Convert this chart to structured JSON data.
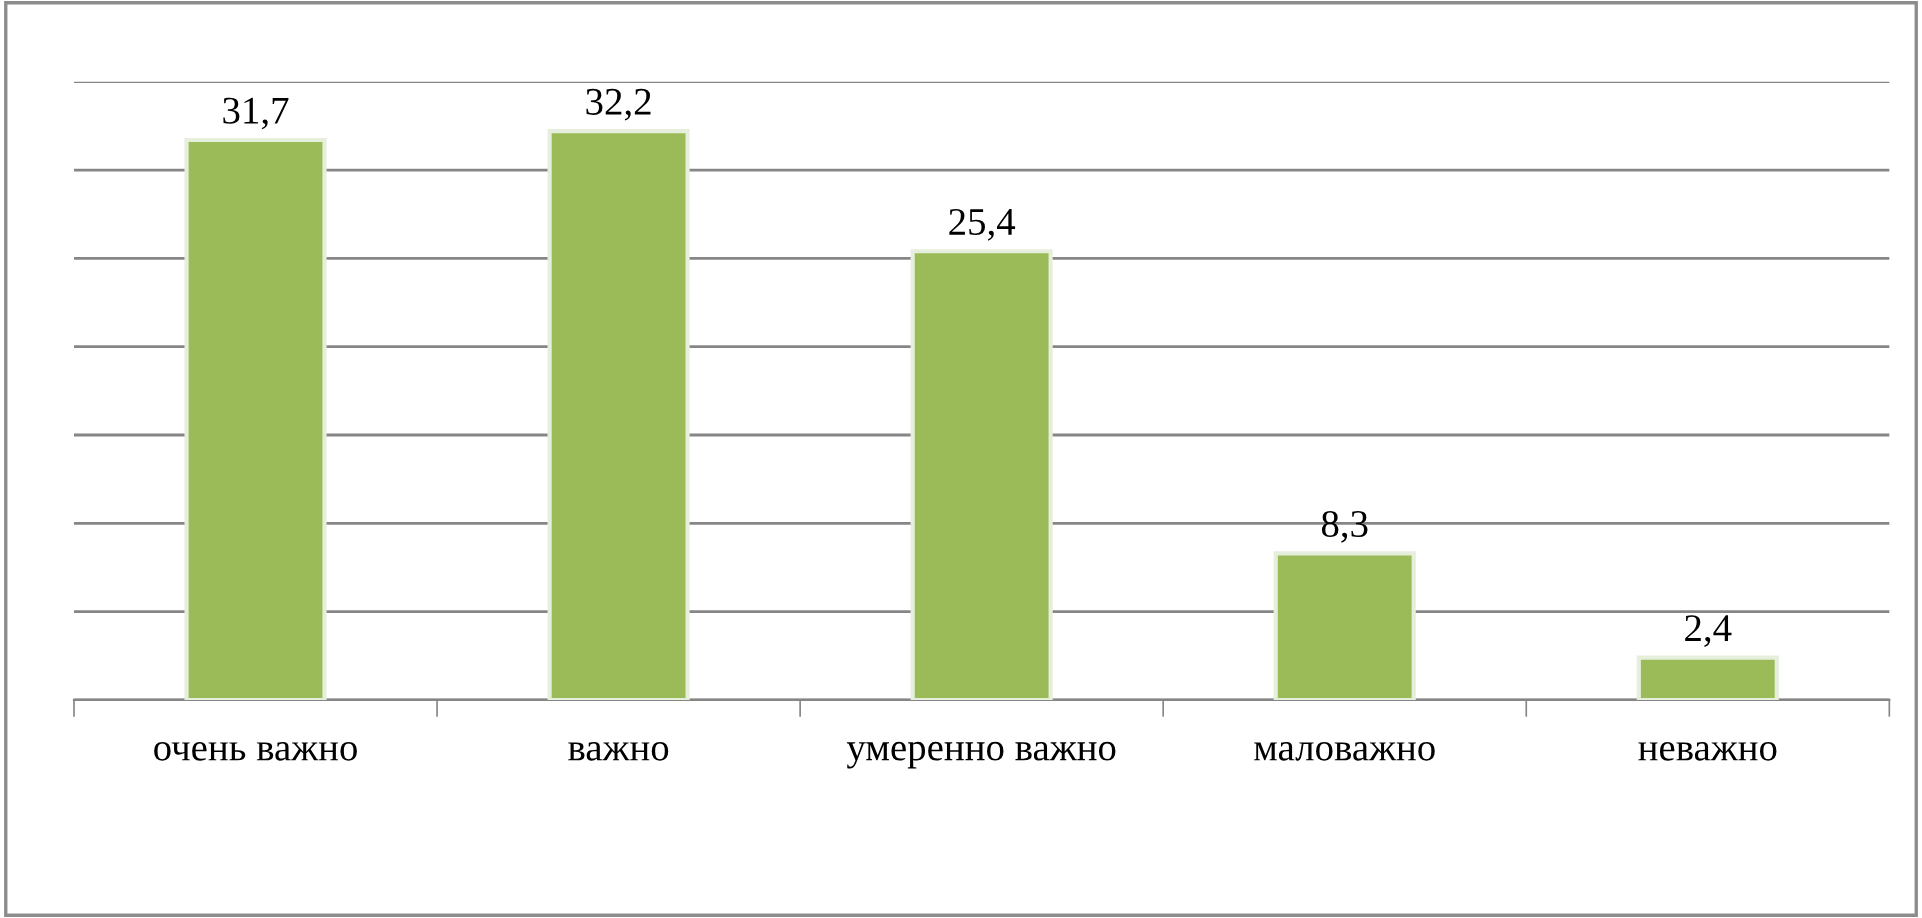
{
  "chart_data": {
    "type": "bar",
    "categories": [
      "очень важно",
      "важно",
      "умеренно важно",
      "маловажно",
      "неважно"
    ],
    "values": [
      31.7,
      32.2,
      25.4,
      8.3,
      2.4
    ],
    "color": "#9bbb59",
    "data_labels": true,
    "value_labels": [
      "31,7",
      "32,2",
      "25,4",
      "8,3",
      "2,4"
    ],
    "ylim": [
      0,
      35
    ],
    "yticks": [
      {
        "value": 0,
        "label": null
      },
      {
        "value": 5,
        "label": null
      },
      {
        "value": 10,
        "label": null
      },
      {
        "value": 15,
        "label": null
      },
      {
        "value": 20,
        "label": null
      },
      {
        "value": 25,
        "label": null
      },
      {
        "value": 30,
        "label": null
      },
      {
        "value": 35,
        "label": null
      }
    ],
    "tick_labels": "x",
    "grid": "y",
    "legend": false
  }
}
